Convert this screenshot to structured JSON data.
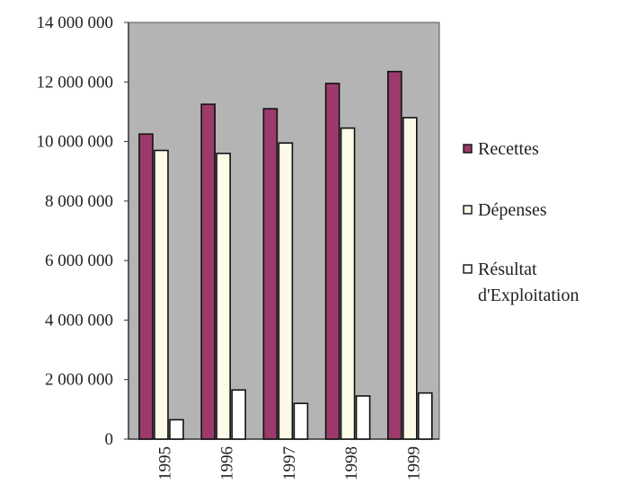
{
  "chart_data": {
    "type": "bar",
    "categories": [
      "1995",
      "1996",
      "1997",
      "1998",
      "1999"
    ],
    "series": [
      {
        "name": "Recettes",
        "values": [
          10250000,
          11250000,
          11100000,
          11950000,
          12350000
        ],
        "color": "#9c3a6c"
      },
      {
        "name": "Dépenses",
        "values": [
          9700000,
          9600000,
          9950000,
          10450000,
          10800000
        ],
        "color": "#fdfbe8"
      },
      {
        "name": "Résultat d'Exploitation",
        "values": [
          650000,
          1650000,
          1200000,
          1450000,
          1550000
        ],
        "color": "#ffffff"
      }
    ],
    "y_ticks": [
      "0",
      "2 000 000",
      "4 000 000",
      "6 000 000",
      "8 000 000",
      "10 000 000",
      "12 000 000",
      "14 000 000"
    ],
    "ylim": [
      0,
      14000000
    ],
    "legend_labels": [
      [
        "Recettes"
      ],
      [
        "Dépenses"
      ],
      [
        "Résultat",
        "d'Exploitation"
      ]
    ],
    "legend_position": "right",
    "plot_background": "#b4b4b4",
    "grid": false,
    "title": "",
    "xlabel": "",
    "ylabel": ""
  }
}
